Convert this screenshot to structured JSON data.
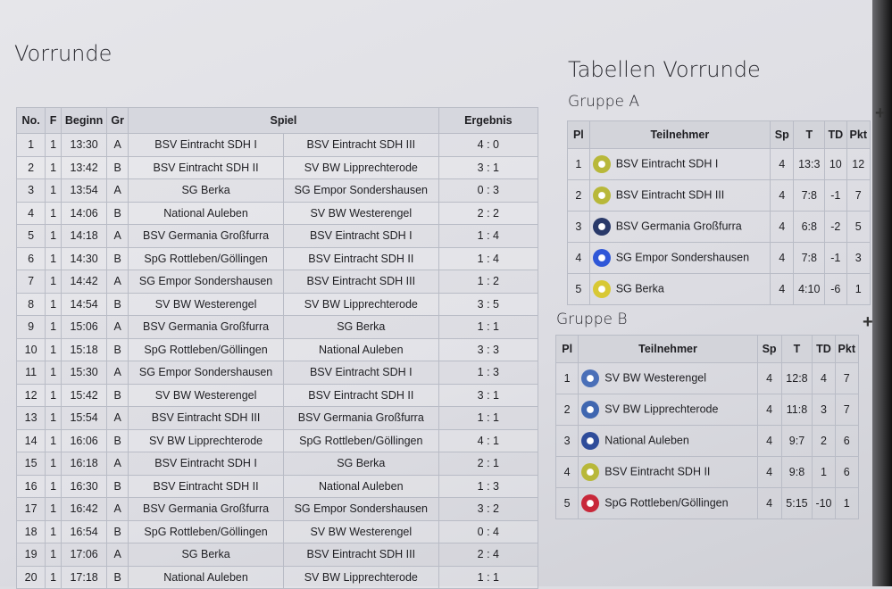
{
  "vorrunde": {
    "title": "Vorrunde",
    "headers": {
      "no": "No.",
      "f": "F",
      "beginn": "Beginn",
      "gr": "Gr",
      "spiel": "Spiel",
      "ergebnis": "Ergebnis"
    },
    "games": [
      {
        "no": "1",
        "f": "1",
        "time": "13:30",
        "gr": "A",
        "home": "BSV Eintracht SDH I",
        "away": "BSV Eintracht SDH III",
        "result": "4 : 0"
      },
      {
        "no": "2",
        "f": "1",
        "time": "13:42",
        "gr": "B",
        "home": "BSV Eintracht SDH II",
        "away": "SV BW Lipprechterode",
        "result": "3 : 1"
      },
      {
        "no": "3",
        "f": "1",
        "time": "13:54",
        "gr": "A",
        "home": "SG Berka",
        "away": "SG Empor Sondershausen",
        "result": "0 : 3"
      },
      {
        "no": "4",
        "f": "1",
        "time": "14:06",
        "gr": "B",
        "home": "National Auleben",
        "away": "SV BW Westerengel",
        "result": "2 : 2"
      },
      {
        "no": "5",
        "f": "1",
        "time": "14:18",
        "gr": "A",
        "home": "BSV Germania Großfurra",
        "away": "BSV Eintracht SDH I",
        "result": "1 : 4"
      },
      {
        "no": "6",
        "f": "1",
        "time": "14:30",
        "gr": "B",
        "home": "SpG Rottleben/Göllingen",
        "away": "BSV Eintracht SDH II",
        "result": "1 : 4"
      },
      {
        "no": "7",
        "f": "1",
        "time": "14:42",
        "gr": "A",
        "home": "SG Empor Sondershausen",
        "away": "BSV Eintracht SDH III",
        "result": "1 : 2"
      },
      {
        "no": "8",
        "f": "1",
        "time": "14:54",
        "gr": "B",
        "home": "SV BW Westerengel",
        "away": "SV BW Lipprechterode",
        "result": "3 : 5"
      },
      {
        "no": "9",
        "f": "1",
        "time": "15:06",
        "gr": "A",
        "home": "BSV Germania Großfurra",
        "away": "SG Berka",
        "result": "1 : 1"
      },
      {
        "no": "10",
        "f": "1",
        "time": "15:18",
        "gr": "B",
        "home": "SpG Rottleben/Göllingen",
        "away": "National Auleben",
        "result": "3 : 3"
      },
      {
        "no": "11",
        "f": "1",
        "time": "15:30",
        "gr": "A",
        "home": "SG Empor Sondershausen",
        "away": "BSV Eintracht SDH I",
        "result": "1 : 3"
      },
      {
        "no": "12",
        "f": "1",
        "time": "15:42",
        "gr": "B",
        "home": "SV BW Westerengel",
        "away": "BSV Eintracht SDH II",
        "result": "3 : 1"
      },
      {
        "no": "13",
        "f": "1",
        "time": "15:54",
        "gr": "A",
        "home": "BSV Eintracht SDH III",
        "away": "BSV Germania Großfurra",
        "result": "1 : 1"
      },
      {
        "no": "14",
        "f": "1",
        "time": "16:06",
        "gr": "B",
        "home": "SV BW Lipprechterode",
        "away": "SpG Rottleben/Göllingen",
        "result": "4 : 1"
      },
      {
        "no": "15",
        "f": "1",
        "time": "16:18",
        "gr": "A",
        "home": "BSV Eintracht SDH I",
        "away": "SG Berka",
        "result": "2 : 1"
      },
      {
        "no": "16",
        "f": "1",
        "time": "16:30",
        "gr": "B",
        "home": "BSV Eintracht SDH II",
        "away": "National Auleben",
        "result": "1 : 3"
      },
      {
        "no": "17",
        "f": "1",
        "time": "16:42",
        "gr": "A",
        "home": "BSV Germania Großfurra",
        "away": "SG Empor Sondershausen",
        "result": "3 : 2"
      },
      {
        "no": "18",
        "f": "1",
        "time": "16:54",
        "gr": "B",
        "home": "SpG Rottleben/Göllingen",
        "away": "SV BW Westerengel",
        "result": "0 : 4"
      },
      {
        "no": "19",
        "f": "1",
        "time": "17:06",
        "gr": "A",
        "home": "SG Berka",
        "away": "BSV Eintracht SDH III",
        "result": "2 : 4"
      },
      {
        "no": "20",
        "f": "1",
        "time": "17:18",
        "gr": "B",
        "home": "National Auleben",
        "away": "SV BW Lipprechterode",
        "result": "1 : 1"
      }
    ]
  },
  "tabellen": {
    "title": "Tabellen Vorrunde",
    "headers": {
      "pl": "Pl",
      "team": "Teilnehmer",
      "sp": "Sp",
      "t": "T",
      "td": "TD",
      "pkt": "Pkt"
    },
    "expand_icon": "plus-icon",
    "groups": [
      {
        "name": "Gruppe A",
        "rows": [
          {
            "pl": "1",
            "team": "BSV Eintracht SDH I",
            "sp": "4",
            "t": "13:3",
            "td": "10",
            "pkt": "12",
            "logo_color": "#b8b83a"
          },
          {
            "pl": "2",
            "team": "BSV Eintracht SDH III",
            "sp": "4",
            "t": "7:8",
            "td": "-1",
            "pkt": "7",
            "logo_color": "#b8b83a"
          },
          {
            "pl": "3",
            "team": "BSV Germania Großfurra",
            "sp": "4",
            "t": "6:8",
            "td": "-2",
            "pkt": "5",
            "logo_color": "#2a3a6a"
          },
          {
            "pl": "4",
            "team": "SG Empor Sondershausen",
            "sp": "4",
            "t": "7:8",
            "td": "-1",
            "pkt": "3",
            "logo_color": "#2f57d8"
          },
          {
            "pl": "5",
            "team": "SG Berka",
            "sp": "4",
            "t": "4:10",
            "td": "-6",
            "pkt": "1",
            "logo_color": "#d8c834"
          }
        ]
      },
      {
        "name": "Gruppe B",
        "rows": [
          {
            "pl": "1",
            "team": "SV BW Westerengel",
            "sp": "4",
            "t": "12:8",
            "td": "4",
            "pkt": "7",
            "logo_color": "#4a6fb8"
          },
          {
            "pl": "2",
            "team": "SV BW Lipprechterode",
            "sp": "4",
            "t": "11:8",
            "td": "3",
            "pkt": "7",
            "logo_color": "#3f66b0"
          },
          {
            "pl": "3",
            "team": "National Auleben",
            "sp": "4",
            "t": "9:7",
            "td": "2",
            "pkt": "6",
            "logo_color": "#2e4c9a"
          },
          {
            "pl": "4",
            "team": "BSV Eintracht SDH II",
            "sp": "4",
            "t": "9:8",
            "td": "1",
            "pkt": "6",
            "logo_color": "#b8b83a"
          },
          {
            "pl": "5",
            "team": "SpG Rottleben/Göllingen",
            "sp": "4",
            "t": "5:15",
            "td": "-10",
            "pkt": "1",
            "logo_color": "#c8283a"
          }
        ]
      }
    ]
  }
}
